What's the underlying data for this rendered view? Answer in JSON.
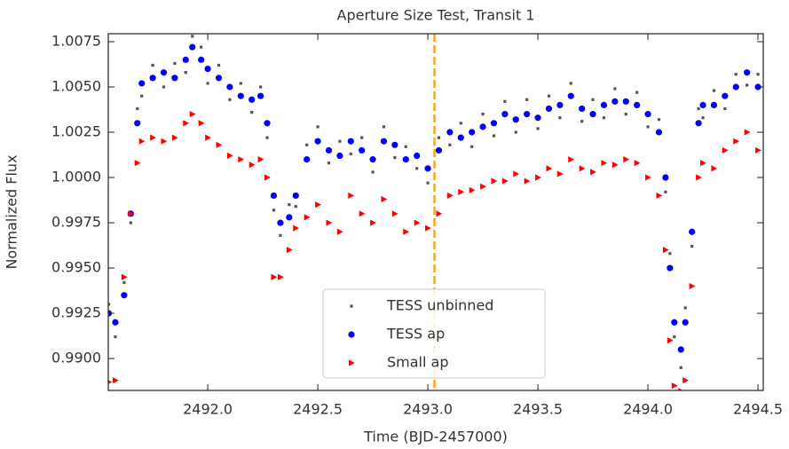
{
  "chart_data": {
    "type": "scatter",
    "title": "Aperture Size Test, Transit 1",
    "xlabel": "Time (BJD-2457000)",
    "ylabel": "Normalized Flux",
    "xlim": [
      2491.548,
      2494.524
    ],
    "ylim": [
      0.98824,
      1.00794
    ],
    "xticks": [
      {
        "value": 2492.0,
        "label": "2492.0"
      },
      {
        "value": 2492.5,
        "label": "2492.5"
      },
      {
        "value": 2493.0,
        "label": "2493.0"
      },
      {
        "value": 2493.5,
        "label": "2493.5"
      },
      {
        "value": 2494.0,
        "label": "2494.0"
      },
      {
        "value": 2494.5,
        "label": "2494.5"
      }
    ],
    "yticks": [
      {
        "value": 0.99,
        "label": "0.9900"
      },
      0.9925,
      {
        "value": 0.995,
        "label": "0.9950"
      },
      0.9975,
      {
        "value": 1.0,
        "label": "1.0000"
      },
      1.0025,
      {
        "value": 1.005,
        "label": "1.0050"
      },
      1.0075
    ],
    "vline": {
      "x": 2493.03,
      "color": "#f5a623"
    },
    "legend": "lower center",
    "x": [
      2491.55,
      2491.58,
      2491.62,
      2491.65,
      2491.68,
      2491.7,
      2491.75,
      2491.8,
      2491.85,
      2491.9,
      2491.93,
      2491.97,
      2492.0,
      2492.05,
      2492.1,
      2492.15,
      2492.2,
      2492.24,
      2492.27,
      2492.3,
      2492.33,
      2492.37,
      2492.4,
      2492.45,
      2492.5,
      2492.55,
      2492.6,
      2492.65,
      2492.7,
      2492.75,
      2492.8,
      2492.85,
      2492.9,
      2492.95,
      2493.0,
      2493.05,
      2493.1,
      2493.15,
      2493.2,
      2493.25,
      2493.3,
      2493.35,
      2493.4,
      2493.45,
      2493.5,
      2493.55,
      2493.6,
      2493.65,
      2493.7,
      2493.75,
      2493.8,
      2493.85,
      2493.9,
      2493.95,
      2494.0,
      2494.05,
      2494.08,
      2494.1,
      2494.12,
      2494.15,
      2494.17,
      2494.2,
      2494.23,
      2494.25,
      2494.3,
      2494.35,
      2494.4,
      2494.45,
      2494.5
    ],
    "series": [
      {
        "name": "TESS unbinned",
        "color": "#555555",
        "marker": "square",
        "values": [
          0.993,
          0.9912,
          0.9942,
          0.9975,
          1.0038,
          1.0045,
          1.0062,
          1.005,
          1.0063,
          1.0058,
          1.0078,
          1.0072,
          1.0052,
          1.0062,
          1.0043,
          1.0052,
          1.0036,
          1.005,
          1.0022,
          0.9982,
          0.9968,
          0.9985,
          0.9984,
          1.0018,
          1.0028,
          1.0008,
          1.002,
          1.0013,
          1.0022,
          1.0003,
          1.0028,
          1.0011,
          1.0017,
          1.0005,
          0.9997,
          1.0022,
          1.0018,
          1.003,
          1.0017,
          1.0035,
          1.0023,
          1.0042,
          1.0025,
          1.0043,
          1.0027,
          1.0045,
          1.0033,
          1.0052,
          1.0031,
          1.0043,
          1.0033,
          1.0049,
          1.0035,
          1.0047,
          1.0028,
          1.0032,
          0.9992,
          0.9958,
          0.9912,
          0.9895,
          0.9928,
          0.9962,
          1.0038,
          1.0033,
          1.0048,
          1.0038,
          1.0057,
          1.0051,
          1.0057
        ]
      },
      {
        "name": "TESS ap",
        "color": "#0000ff",
        "marker": "circle",
        "values": [
          0.9925,
          0.992,
          0.9935,
          0.998,
          1.003,
          1.0052,
          1.0055,
          1.0058,
          1.0055,
          1.0065,
          1.0072,
          1.0065,
          1.006,
          1.0055,
          1.005,
          1.0045,
          1.0043,
          1.0045,
          1.003,
          0.999,
          0.9975,
          0.9978,
          0.999,
          1.001,
          1.002,
          1.0015,
          1.0012,
          1.002,
          1.0015,
          1.001,
          1.002,
          1.0018,
          1.001,
          1.0012,
          1.0005,
          1.0015,
          1.0025,
          1.0022,
          1.0025,
          1.0028,
          1.003,
          1.0035,
          1.0032,
          1.0035,
          1.0033,
          1.0038,
          1.004,
          1.0045,
          1.0038,
          1.0035,
          1.004,
          1.0042,
          1.0042,
          1.004,
          1.0035,
          1.0025,
          1.0,
          0.995,
          0.992,
          0.9905,
          0.992,
          0.997,
          1.003,
          1.004,
          1.004,
          1.0045,
          1.005,
          1.0058,
          1.005
        ]
      },
      {
        "name": "Small ap",
        "color": "#ff0000",
        "marker": "triangle-right",
        "values": [
          0.9887,
          0.9888,
          0.9945,
          0.998,
          1.0008,
          1.002,
          1.0022,
          1.002,
          1.0022,
          1.003,
          1.0035,
          1.003,
          1.0022,
          1.0018,
          1.0012,
          1.001,
          1.0007,
          1.001,
          1.0,
          0.9945,
          0.9945,
          0.996,
          0.9972,
          0.9978,
          0.9985,
          0.9975,
          0.997,
          0.999,
          0.998,
          0.9975,
          0.9988,
          0.998,
          0.997,
          0.9975,
          0.9972,
          0.998,
          0.999,
          0.9992,
          0.9993,
          0.9995,
          0.9998,
          0.9998,
          1.0002,
          0.9998,
          1.0,
          1.0005,
          1.0002,
          1.001,
          1.0005,
          1.0003,
          1.0008,
          1.0007,
          1.001,
          1.0008,
          1.0,
          0.999,
          0.996,
          0.991,
          0.9885,
          0.9882,
          0.9888,
          0.994,
          1.0,
          1.0008,
          1.0005,
          1.0015,
          1.002,
          1.0025,
          1.0015
        ]
      }
    ]
  }
}
